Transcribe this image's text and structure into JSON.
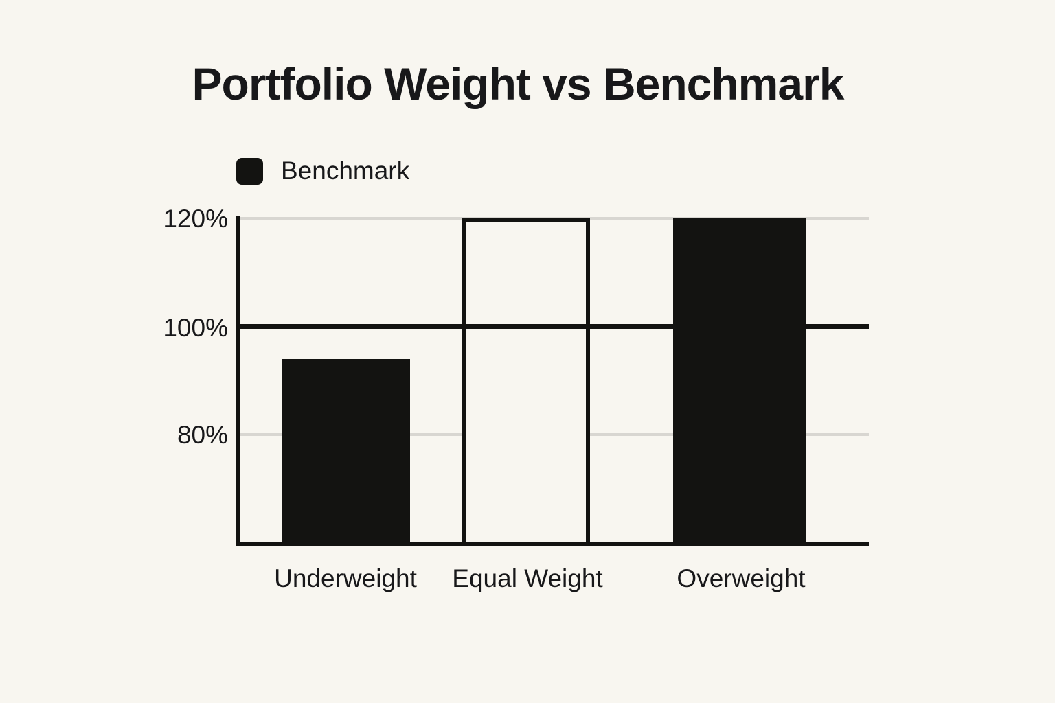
{
  "title": "Portfolio Weight vs Benchmark",
  "legend": {
    "label": "Benchmark",
    "swatch_color": "#131311"
  },
  "colors": {
    "background": "#f8f6f0",
    "bar_fill": "#131311",
    "axis": "#131311",
    "grid_minor": "#d8d6d1",
    "grid_major": "#131311",
    "text": "#18181a"
  },
  "chart_data": {
    "type": "bar",
    "title": "Portfolio Weight vs Benchmark",
    "categories": [
      "Underweight",
      "Equal Weight",
      "Overweight"
    ],
    "series": [
      {
        "name": "Benchmark",
        "values": [
          94,
          120,
          120
        ]
      }
    ],
    "bar_styles": [
      "filled",
      "outline",
      "filled"
    ],
    "xlabel": "",
    "ylabel": "",
    "ylim": [
      60,
      120
    ],
    "yticks": [
      {
        "label": "120%",
        "value": 120
      },
      {
        "label": "100%",
        "value": 100
      },
      {
        "label": "80%",
        "value": 80
      }
    ],
    "grid": "horizontal",
    "emphasized_gridline_value": 100,
    "legend_entries": [
      "Benchmark"
    ],
    "legend_position": "top-left"
  }
}
